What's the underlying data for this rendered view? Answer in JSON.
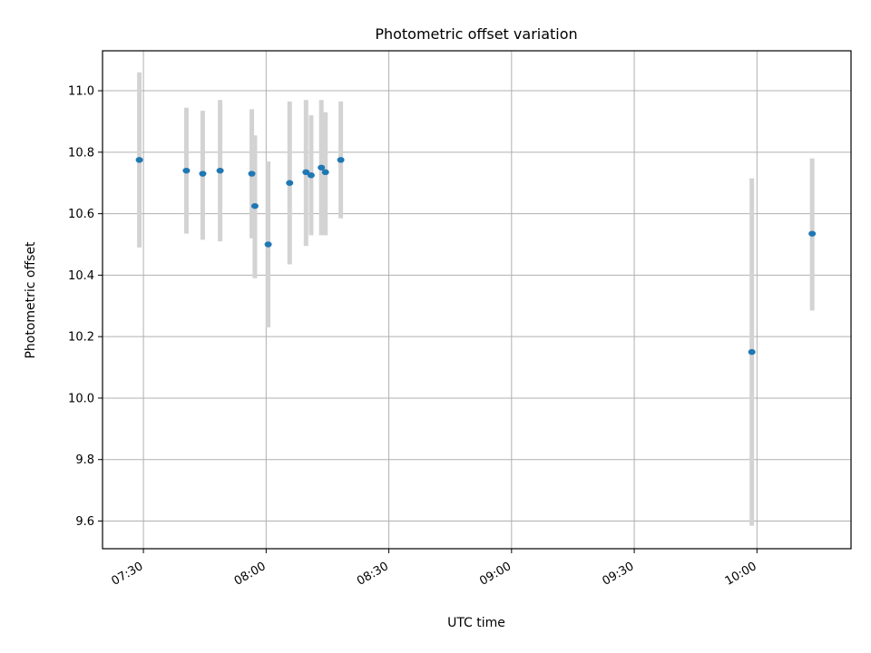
{
  "chart_data": {
    "type": "scatter",
    "title": "Photometric offset variation",
    "xlabel": "UTC time",
    "ylabel": "Photometric offset",
    "x_axis_type": "time",
    "xlim": [
      "07:20",
      "10:23"
    ],
    "ylim": [
      9.51,
      11.13
    ],
    "x_ticks": [
      "07:30",
      "08:00",
      "08:30",
      "09:00",
      "09:30",
      "10:00"
    ],
    "y_ticks": [
      9.6,
      9.8,
      10.0,
      10.2,
      10.4,
      10.6,
      10.8,
      11.0
    ],
    "y_tick_labels": [
      "9.6",
      "9.8",
      "10.0",
      "10.2",
      "10.4",
      "10.6",
      "10.8",
      "11.0"
    ],
    "grid": true,
    "colors": {
      "points": "#1f77b4",
      "error_bars": "#d3d3d3"
    },
    "series": [
      {
        "points": [
          {
            "x": "07:29:00",
            "y": 10.775,
            "ylow": 10.49,
            "yhigh": 11.06
          },
          {
            "x": "07:40:30",
            "y": 10.74,
            "ylow": 10.535,
            "yhigh": 10.945
          },
          {
            "x": "07:44:30",
            "y": 10.73,
            "ylow": 10.515,
            "yhigh": 10.935
          },
          {
            "x": "07:48:45",
            "y": 10.74,
            "ylow": 10.51,
            "yhigh": 10.97
          },
          {
            "x": "07:56:30",
            "y": 10.73,
            "ylow": 10.52,
            "yhigh": 10.94
          },
          {
            "x": "07:57:15",
            "y": 10.625,
            "ylow": 10.39,
            "yhigh": 10.855
          },
          {
            "x": "08:00:30",
            "y": 10.5,
            "ylow": 10.23,
            "yhigh": 10.77
          },
          {
            "x": "08:05:45",
            "y": 10.7,
            "ylow": 10.435,
            "yhigh": 10.965
          },
          {
            "x": "08:09:45",
            "y": 10.735,
            "ylow": 10.495,
            "yhigh": 10.97
          },
          {
            "x": "08:11:00",
            "y": 10.725,
            "ylow": 10.53,
            "yhigh": 10.92
          },
          {
            "x": "08:13:30",
            "y": 10.75,
            "ylow": 10.53,
            "yhigh": 10.97
          },
          {
            "x": "08:14:30",
            "y": 10.735,
            "ylow": 10.53,
            "yhigh": 10.93
          },
          {
            "x": "08:18:15",
            "y": 10.775,
            "ylow": 10.585,
            "yhigh": 10.965
          },
          {
            "x": "09:58:45",
            "y": 10.15,
            "ylow": 9.585,
            "yhigh": 10.715
          },
          {
            "x": "10:13:30",
            "y": 10.535,
            "ylow": 10.285,
            "yhigh": 10.78
          }
        ]
      }
    ]
  }
}
